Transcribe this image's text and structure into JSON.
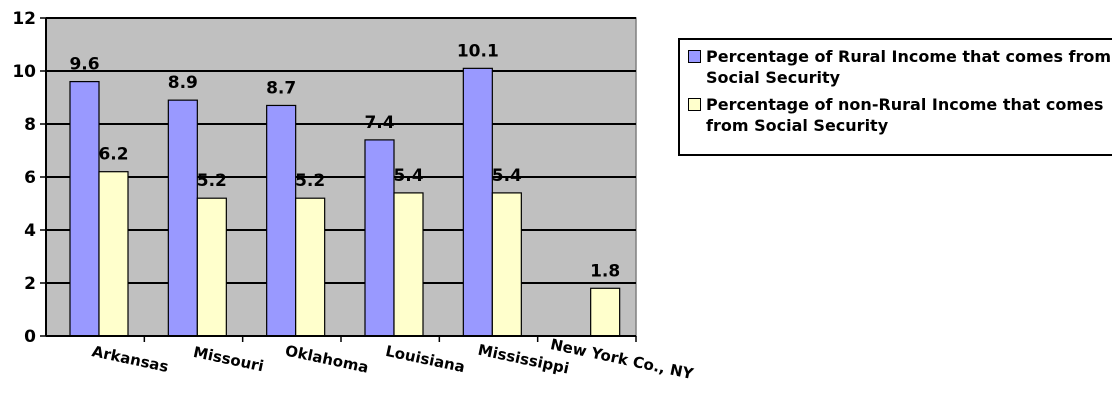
{
  "chart_data": {
    "type": "bar",
    "categories": [
      "Arkansas",
      "Missouri",
      "Oklahoma",
      "Louisiana",
      "Mississippi",
      "New York Co., NY"
    ],
    "series": [
      {
        "name": "Percentage of Rural Income that comes from Social Security",
        "values": [
          9.6,
          8.9,
          8.7,
          7.4,
          10.1,
          null
        ],
        "color": "#9999FF"
      },
      {
        "name": "Percentage of non-Rural Income that comes from Social Security",
        "values": [
          6.2,
          5.2,
          5.2,
          5.4,
          5.4,
          1.8
        ],
        "color": "#FFFFCC"
      }
    ],
    "ylim": [
      0,
      12
    ],
    "yticks": [
      0,
      2,
      4,
      6,
      8,
      10,
      12
    ],
    "ytick_labels": [
      "0",
      "2",
      "4",
      "6",
      "8",
      "10",
      "12"
    ],
    "plot_background": "#C0C0C0",
    "grid": true,
    "legend_position": "right",
    "title": "",
    "xlabel": "",
    "ylabel": ""
  }
}
